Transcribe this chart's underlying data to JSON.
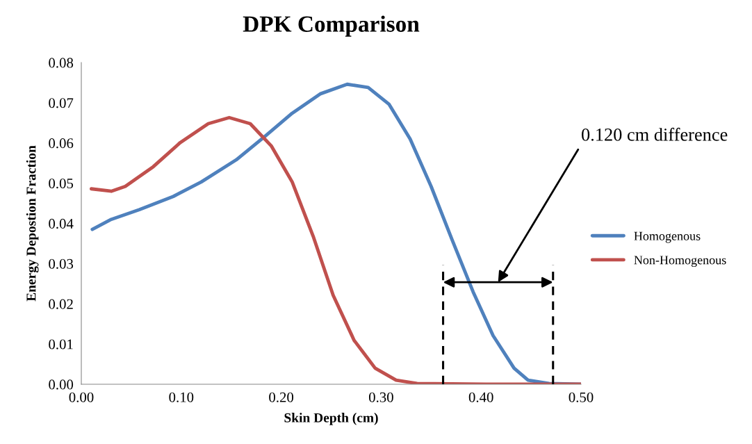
{
  "chart_data": {
    "type": "line",
    "title": "DPK Comparison",
    "xlabel": "Skin Depth (cm)",
    "ylabel": "Energy Depostion Fraction",
    "series": [
      {
        "name": "Homogenous",
        "color": "#4f81bd",
        "x": [
          0.011,
          0.03,
          0.058,
          0.092,
          0.12,
          0.155,
          0.183,
          0.211,
          0.239,
          0.266,
          0.287,
          0.308,
          0.329,
          0.35,
          0.371,
          0.392,
          0.412,
          0.433,
          0.447,
          0.468,
          0.5
        ],
        "values": [
          0.0385,
          0.041,
          0.0434,
          0.0467,
          0.0503,
          0.0558,
          0.0615,
          0.0674,
          0.0722,
          0.0746,
          0.0738,
          0.0696,
          0.061,
          0.0492,
          0.0359,
          0.023,
          0.0121,
          0.004,
          0.001,
          0.0002,
          0.0
        ]
      },
      {
        "name": "Non-Homogenous",
        "color": "#c0504d",
        "x": [
          0.01,
          0.03,
          0.044,
          0.072,
          0.099,
          0.127,
          0.148,
          0.169,
          0.19,
          0.211,
          0.232,
          0.252,
          0.273,
          0.294,
          0.315,
          0.336,
          0.405,
          0.5
        ],
        "values": [
          0.0486,
          0.048,
          0.0492,
          0.0541,
          0.0601,
          0.0648,
          0.0663,
          0.0648,
          0.0593,
          0.0503,
          0.0368,
          0.0221,
          0.0109,
          0.004,
          0.001,
          0.0002,
          0.0,
          0.0
        ]
      }
    ],
    "xlim": [
      0,
      0.5
    ],
    "xticks": [
      {
        "value": 0,
        "label": "0.00"
      },
      {
        "value": 0.1,
        "label": "0.10"
      },
      {
        "value": 0.2,
        "label": "0.20"
      },
      {
        "value": 0.3,
        "label": "0.30"
      },
      {
        "value": 0.4,
        "label": "0.40"
      },
      {
        "value": 0.5,
        "label": "0.50"
      }
    ],
    "ylim": [
      0,
      0.08
    ],
    "yticks": [
      {
        "value": 0,
        "label": "0.00"
      },
      {
        "value": 0.01,
        "label": "0.01"
      },
      {
        "value": 0.02,
        "label": "0.02"
      },
      {
        "value": 0.03,
        "label": "0.03"
      },
      {
        "value": 0.04,
        "label": "0.04"
      },
      {
        "value": 0.05,
        "label": "0.05"
      },
      {
        "value": 0.06,
        "label": "0.06"
      },
      {
        "value": 0.07,
        "label": "0.07"
      },
      {
        "value": 0.08,
        "label": "0.08"
      }
    ],
    "ref_lines": [
      {
        "axis": "x",
        "value": 0.362,
        "color": "#000000",
        "line_style": "dashed"
      },
      {
        "axis": "x",
        "value": 0.472,
        "color": "#000000",
        "line_style": "dashed"
      }
    ],
    "annotations": [
      "0.120 cm difference"
    ],
    "grid": false,
    "legend": "right",
    "marker": "none",
    "line_style": "solid"
  }
}
